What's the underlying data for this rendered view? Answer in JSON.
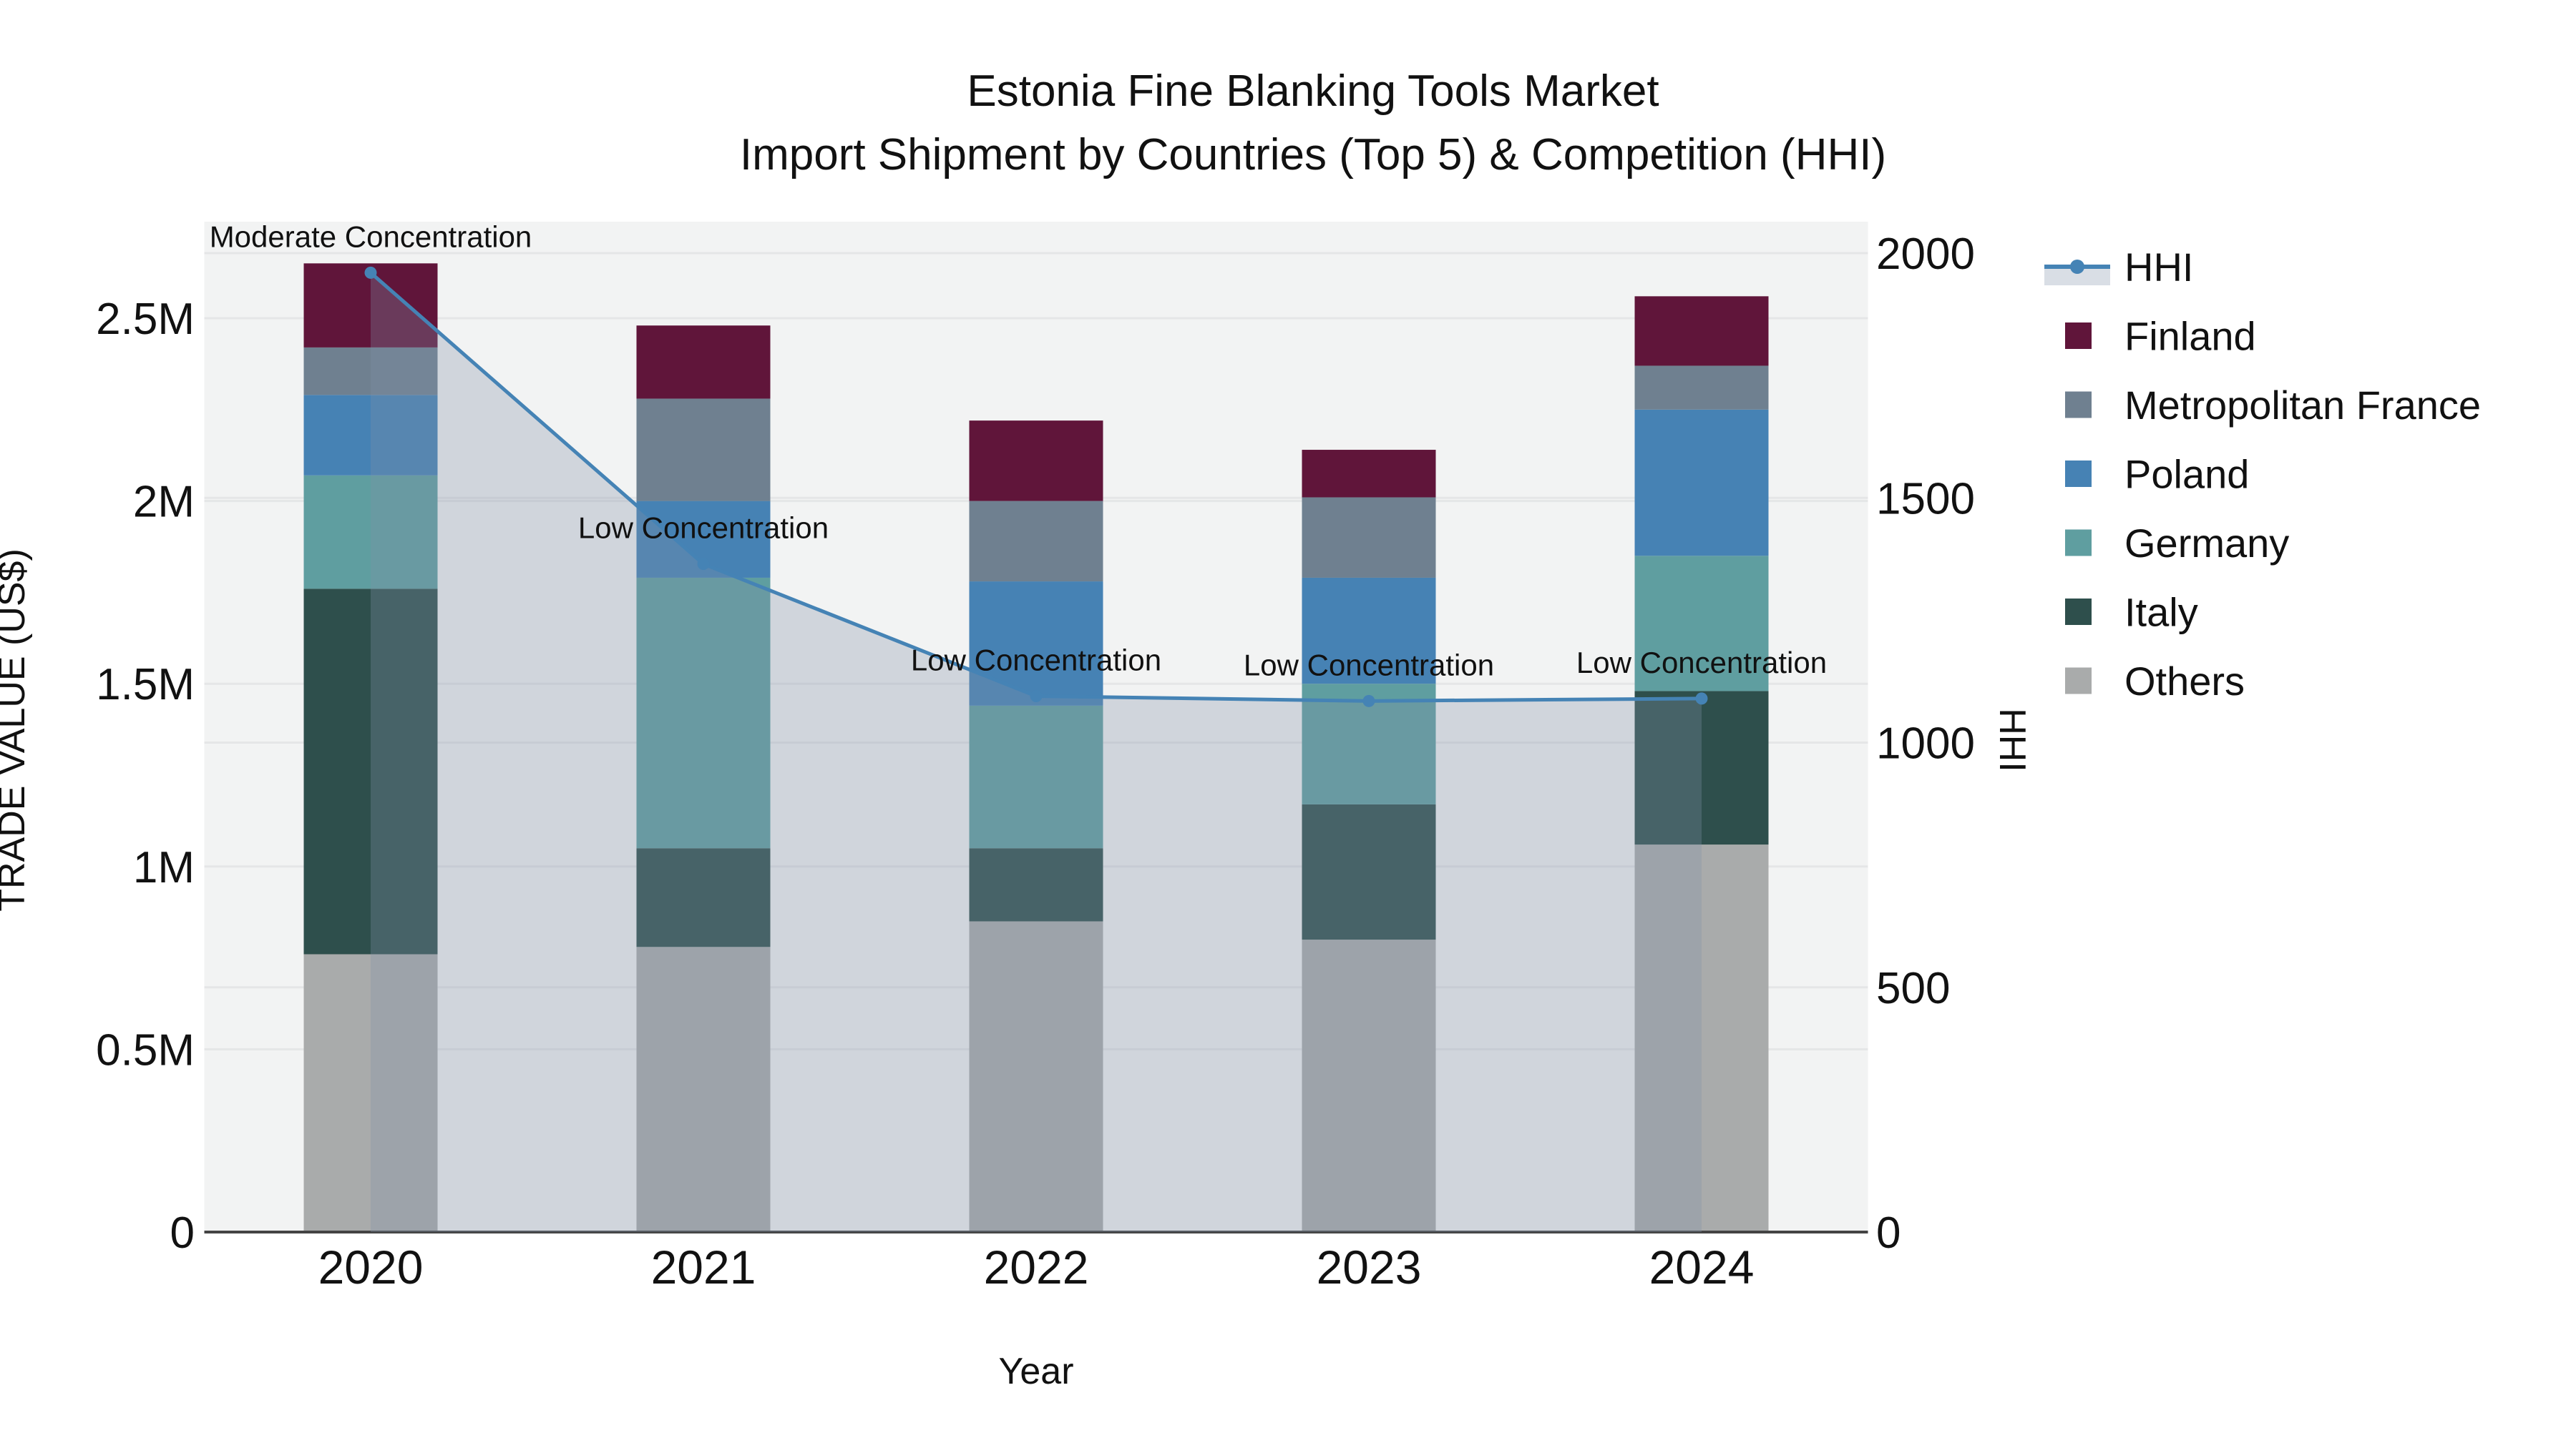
{
  "figure": {
    "title_line1": "Estonia Fine Blanking Tools Market",
    "title_line2": "Import Shipment by Countries (Top 5) & Competition (HHI)"
  },
  "chart_data": {
    "type": "bar",
    "variant": "stacked-bars-with-dual-axis-line",
    "title": "Estonia Fine Blanking Tools Market",
    "subtitle": "Import Shipment by Countries (Top 5) & Competition (HHI)",
    "xlabel": "Year",
    "ylabel_left": "TRADE VALUE (US$)",
    "ylabel_right": "HHI",
    "grid": true,
    "legend_position": "right",
    "categories": [
      "2020",
      "2021",
      "2022",
      "2023",
      "2024"
    ],
    "stack_order_bottom_to_top": [
      "Others",
      "Italy",
      "Germany",
      "Poland",
      "Metropolitan France",
      "Finland"
    ],
    "series": [
      {
        "name": "Others",
        "color": "#A9ABAB",
        "values_million_usd": [
          0.76,
          0.78,
          0.85,
          0.8,
          1.06
        ]
      },
      {
        "name": "Italy",
        "color": "#2E4F4C",
        "values_million_usd": [
          1.0,
          0.27,
          0.2,
          0.37,
          0.42
        ]
      },
      {
        "name": "Germany",
        "color": "#5F9EA0",
        "values_million_usd": [
          0.31,
          0.74,
          0.39,
          0.33,
          0.37
        ]
      },
      {
        "name": "Poland",
        "color": "#4682B4",
        "values_million_usd": [
          0.22,
          0.21,
          0.34,
          0.29,
          0.4
        ]
      },
      {
        "name": "Metropolitan France",
        "color": "#6F8090",
        "values_million_usd": [
          0.13,
          0.28,
          0.22,
          0.22,
          0.12
        ]
      },
      {
        "name": "Finland",
        "color": "#60153A",
        "values_million_usd": [
          0.23,
          0.2,
          0.22,
          0.13,
          0.19
        ]
      }
    ],
    "bar_totals_million_usd": [
      2.65,
      2.48,
      2.22,
      2.14,
      2.56
    ],
    "line_series": {
      "name": "HHI",
      "axis": "right",
      "color": "#4583B5",
      "fill_color": "rgba(130,145,170,0.30)",
      "values": [
        1960,
        1365,
        1095,
        1085,
        1090
      ]
    },
    "annotations": [
      {
        "x": "2020",
        "text": "Moderate Concentration"
      },
      {
        "x": "2021",
        "text": "Low Concentration"
      },
      {
        "x": "2022",
        "text": "Low Concentration"
      },
      {
        "x": "2023",
        "text": "Low Concentration"
      },
      {
        "x": "2024",
        "text": "Low Concentration"
      }
    ],
    "y_left": {
      "tick_labels": [
        "0",
        "0.5M",
        "1M",
        "1.5M",
        "2M",
        "2.5M"
      ],
      "tick_values_million": [
        0,
        0.5,
        1,
        1.5,
        2,
        2.5
      ],
      "range_million": [
        0,
        2.76
      ]
    },
    "y_right": {
      "tick_labels": [
        "0",
        "500",
        "1000",
        "1500",
        "2000"
      ],
      "tick_values": [
        0,
        500,
        1000,
        1500,
        2000
      ],
      "range": [
        0,
        2064
      ]
    },
    "legend_order": [
      "HHI",
      "Finland",
      "Metropolitan France",
      "Poland",
      "Germany",
      "Italy",
      "Others"
    ]
  },
  "colors": {
    "plot_background": "#F2F3F3",
    "gridline": "#E5E6E7",
    "axis_line": "#444444",
    "text": "#111111"
  }
}
